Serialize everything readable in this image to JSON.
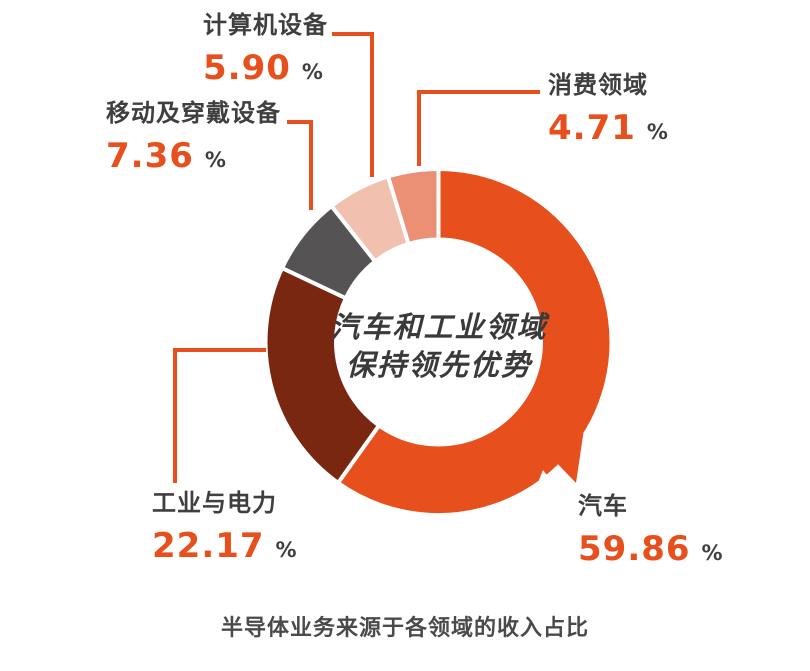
{
  "chart_data": {
    "type": "pie",
    "donut": true,
    "title": "半导体业务来源于各领域的收入占比",
    "center_text": [
      "汽车和工业领域",
      "保持领先优势"
    ],
    "unit": "%",
    "legend_position": "callouts",
    "series": [
      {
        "id": "automotive",
        "label": "汽车",
        "value": 59.86,
        "display": "59.86",
        "color": "#E7501C"
      },
      {
        "id": "industrial-power",
        "label": "工业与电力",
        "value": 22.17,
        "display": "22.17",
        "color": "#7A2712"
      },
      {
        "id": "mobile-wearable",
        "label": "移动及穿戴设备",
        "value": 7.36,
        "display": "7.36",
        "color": "#565355"
      },
      {
        "id": "computer-equipment",
        "label": "计算机设备",
        "value": 5.9,
        "display": "5.90",
        "color": "#F2C0AE"
      },
      {
        "id": "consumer",
        "label": "消费领域",
        "value": 4.71,
        "display": "4.71",
        "color": "#EC9075"
      }
    ],
    "colors": {
      "leader_line": "#E7501C",
      "value_text": "#E7501C",
      "label_text": "#3F3F3F",
      "center_text": "#3A3A3A",
      "caption_text": "#4A4A4A",
      "background": "#FFFFFF"
    }
  }
}
